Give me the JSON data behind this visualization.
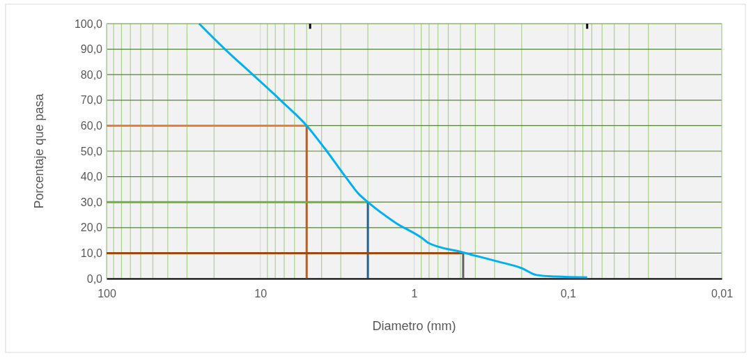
{
  "chart_data": {
    "type": "line",
    "xlabel": "Diametro (mm)",
    "ylabel": "Porcentaje que pasa",
    "log": "x",
    "grid": true,
    "marker": "none",
    "xlim": [
      100,
      0.01
    ],
    "xticks": [
      100,
      {
        "value": 90,
        "label": null
      },
      {
        "value": 80,
        "label": null
      },
      {
        "value": 70,
        "label": null
      },
      {
        "value": 60,
        "label": null
      },
      {
        "value": 50,
        "label": null
      },
      {
        "value": 40,
        "label": null
      },
      {
        "value": 30,
        "label": null
      },
      {
        "value": 20,
        "label": null
      },
      10,
      {
        "value": 9,
        "label": null
      },
      {
        "value": 8,
        "label": null
      },
      {
        "value": 7,
        "label": null
      },
      {
        "value": 6,
        "label": null
      },
      {
        "value": 5,
        "label": null
      },
      {
        "value": 4,
        "label": null
      },
      {
        "value": 3,
        "label": null
      },
      {
        "value": 2,
        "label": null
      },
      1,
      {
        "value": 0.9,
        "label": null
      },
      {
        "value": 0.8,
        "label": null
      },
      {
        "value": 0.7,
        "label": null
      },
      {
        "value": 0.6,
        "label": null
      },
      {
        "value": 0.5,
        "label": null
      },
      {
        "value": 0.4,
        "label": null
      },
      {
        "value": 0.3,
        "label": null
      },
      {
        "value": 0.2,
        "label": null
      },
      {
        "value": 0.1,
        "label": "0,1"
      },
      {
        "value": 0.09,
        "label": null
      },
      {
        "value": 0.08,
        "label": null
      },
      {
        "value": 0.07,
        "label": null
      },
      {
        "value": 0.06,
        "label": null
      },
      {
        "value": 0.05,
        "label": null
      },
      {
        "value": 0.04,
        "label": null
      },
      {
        "value": 0.03,
        "label": null
      },
      {
        "value": 0.02,
        "label": null
      },
      {
        "value": 0.01,
        "label": "0,01"
      }
    ],
    "ylim": [
      0,
      100
    ],
    "yticks": [
      {
        "value": 0,
        "label": "0,0"
      },
      {
        "value": 10,
        "label": "10,0"
      },
      {
        "value": 20,
        "label": "20,0"
      },
      {
        "value": 30,
        "label": "30,0"
      },
      {
        "value": 40,
        "label": "40,0"
      },
      {
        "value": 50,
        "label": "50,0"
      },
      {
        "value": 60,
        "label": "60,0"
      },
      {
        "value": 70,
        "label": "70,0"
      },
      {
        "value": 80,
        "label": "80,0"
      },
      {
        "value": 90,
        "label": "90,0"
      },
      {
        "value": 100,
        "label": "100,0"
      }
    ],
    "series": [
      {
        "color": "#ed7d31",
        "x": [
          100,
          5
        ],
        "values": [
          60,
          60
        ]
      },
      {
        "color": "#c55a11",
        "x": [
          5,
          5
        ],
        "values": [
          60,
          0
        ]
      },
      {
        "color": "#70ad47",
        "x": [
          100,
          2
        ],
        "values": [
          30,
          30
        ]
      },
      {
        "color": "#255e91",
        "x": [
          2,
          2
        ],
        "values": [
          30,
          0
        ]
      },
      {
        "color": "#9e480e",
        "x": [
          100,
          0.48
        ],
        "values": [
          10,
          10
        ]
      },
      {
        "color": "#636363",
        "x": [
          0.48,
          0.48
        ],
        "values": [
          10,
          0
        ]
      },
      {
        "color": "#000000",
        "x": [
          4.75,
          4.75
        ],
        "values": [
          100,
          98
        ]
      },
      {
        "color": "#000000",
        "x": [
          0.075,
          0.075
        ],
        "values": [
          100,
          98
        ]
      },
      {
        "color": "#00b0f0",
        "x": [
          25,
          17,
          11.2,
          7.4,
          5,
          3.7,
          2.8,
          2.3,
          2,
          1.33,
          0.85,
          0.82,
          0.49,
          0.29,
          0.2,
          0.16,
          0.12,
          0.075
        ],
        "values": [
          100,
          90,
          80,
          70,
          60,
          50,
          40,
          33.3,
          30,
          22,
          15,
          14.2,
          10.4,
          6.8,
          4.1,
          1.4,
          0.8,
          0.5
        ]
      }
    ]
  }
}
